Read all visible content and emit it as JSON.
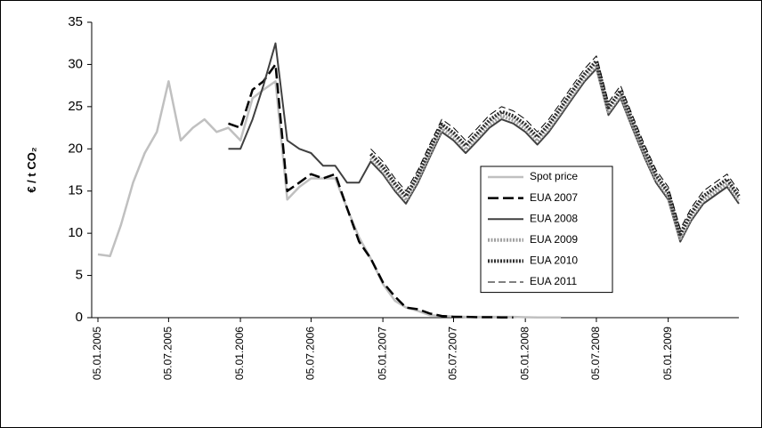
{
  "chart_data": {
    "type": "line",
    "y_label": "€ / t CO₂",
    "x": [
      "05.01.2005",
      "05.02.2005",
      "05.03.2005",
      "05.04.2005",
      "05.05.2005",
      "05.06.2005",
      "05.07.2005",
      "05.08.2005",
      "05.09.2005",
      "05.10.2005",
      "05.11.2005",
      "05.12.2005",
      "05.01.2006",
      "05.02.2006",
      "05.03.2006",
      "05.04.2006",
      "05.05.2006",
      "05.06.2006",
      "05.07.2006",
      "05.08.2006",
      "05.09.2006",
      "05.10.2006",
      "05.11.2006",
      "05.12.2006",
      "05.01.2007",
      "05.02.2007",
      "05.03.2007",
      "05.04.2007",
      "05.05.2007",
      "05.06.2007",
      "05.07.2007",
      "05.08.2007",
      "05.09.2007",
      "05.10.2007",
      "05.11.2007",
      "05.12.2007",
      "05.01.2008",
      "05.02.2008",
      "05.03.2008",
      "05.04.2008",
      "05.05.2008",
      "05.06.2008",
      "05.07.2008",
      "05.08.2008",
      "05.09.2008",
      "05.10.2008",
      "05.11.2008",
      "05.12.2008",
      "05.01.2009",
      "05.02.2009",
      "05.03.2009",
      "05.04.2009",
      "05.05.2009",
      "05.06.2009",
      "05.07.2009"
    ],
    "series": [
      {
        "name": "Spot price",
        "color": "#c0c0c0",
        "style": "solid-light",
        "values": [
          7.5,
          7.3,
          11,
          16,
          19.5,
          22,
          28,
          21,
          22.5,
          23.5,
          22,
          22.5,
          21,
          26,
          27,
          28,
          14,
          15.5,
          16.5,
          16.5,
          16.5,
          13,
          9.5,
          7,
          4,
          2,
          1.2,
          0.8,
          0.3,
          0.2,
          0.15,
          0.1,
          0.1,
          0.1,
          0.1,
          0.1,
          0.05,
          0.03,
          0.02,
          0.02,
          null,
          null,
          null,
          null,
          null,
          null,
          null,
          null,
          null,
          null,
          null,
          null,
          null,
          null,
          null
        ]
      },
      {
        "name": "EUA 2007",
        "color": "#000000",
        "style": "long-dash",
        "values": [
          null,
          null,
          null,
          null,
          null,
          null,
          null,
          null,
          null,
          null,
          null,
          23,
          22.5,
          27,
          28,
          30,
          15,
          16,
          17,
          16.5,
          17,
          13,
          9,
          7,
          4.2,
          2.5,
          1.2,
          1,
          0.5,
          0.2,
          0.1,
          0.1,
          0.05,
          0.05,
          0.03,
          0.02,
          null,
          null,
          null,
          null,
          null,
          null,
          null,
          null,
          null,
          null,
          null,
          null,
          null,
          null,
          null,
          null,
          null,
          null,
          null
        ]
      },
      {
        "name": "EUA 2008",
        "color": "#404040",
        "style": "solid",
        "values": [
          null,
          null,
          null,
          null,
          null,
          null,
          null,
          null,
          null,
          null,
          null,
          20,
          20,
          23.5,
          27.5,
          32.5,
          21,
          20,
          19.5,
          18,
          18,
          16,
          16,
          18.5,
          17,
          15,
          13.5,
          16,
          19,
          22,
          21,
          19.5,
          21,
          22.5,
          23.5,
          23,
          22,
          20.5,
          22,
          24,
          26,
          28,
          29.5,
          24,
          26,
          22.5,
          19,
          16,
          14,
          9,
          11.5,
          13.5,
          14.5,
          15.5,
          13.5
        ]
      },
      {
        "name": "EUA 2009",
        "color": "#a0a0a0",
        "style": "dotted",
        "values": [
          null,
          null,
          null,
          null,
          null,
          null,
          null,
          null,
          null,
          null,
          null,
          null,
          null,
          null,
          null,
          null,
          null,
          null,
          null,
          null,
          null,
          null,
          null,
          18.9,
          17.4,
          15.4,
          13.9,
          16.4,
          19.4,
          22.4,
          21.4,
          19.9,
          21.4,
          22.9,
          23.9,
          23.4,
          22.4,
          20.9,
          22.4,
          24.4,
          26.4,
          28.4,
          29.9,
          24.4,
          26.4,
          22.9,
          19.4,
          16.4,
          14.4,
          9.4,
          11.9,
          13.9,
          14.9,
          15.9,
          13.9
        ]
      },
      {
        "name": "EUA 2010",
        "color": "#303030",
        "style": "dotted",
        "values": [
          null,
          null,
          null,
          null,
          null,
          null,
          null,
          null,
          null,
          null,
          null,
          null,
          null,
          null,
          null,
          null,
          null,
          null,
          null,
          null,
          null,
          null,
          null,
          19.4,
          17.9,
          15.9,
          14.4,
          16.9,
          19.9,
          22.9,
          21.9,
          20.4,
          21.9,
          23.4,
          24.4,
          23.9,
          22.9,
          21.4,
          22.9,
          24.9,
          26.9,
          28.9,
          30.4,
          24.9,
          26.9,
          23.4,
          19.9,
          16.9,
          14.9,
          9.9,
          12.4,
          14.4,
          15.4,
          16.4,
          14.4
        ]
      },
      {
        "name": "EUA 2011",
        "color": "#000000",
        "style": "dash",
        "values": [
          null,
          null,
          null,
          null,
          null,
          null,
          null,
          null,
          null,
          null,
          null,
          null,
          null,
          null,
          null,
          null,
          null,
          null,
          null,
          null,
          null,
          null,
          null,
          20,
          18.5,
          16.5,
          15,
          17.5,
          20.5,
          23.5,
          22.5,
          21,
          22.5,
          24,
          25,
          24.5,
          23.5,
          22,
          23.5,
          25.5,
          27.5,
          29.5,
          31,
          25.5,
          27.5,
          24,
          20.5,
          17.5,
          15.5,
          10.5,
          13,
          15,
          16,
          17,
          15
        ]
      }
    ],
    "xlim": [
      "20.12.2004",
      "05.07.2009"
    ],
    "xticks": [
      "05.01.2005",
      "05.07.2005",
      "05.01.2006",
      "05.07.2006",
      "05.01.2007",
      "05.07.2007",
      "05.01.2008",
      "05.07.2008",
      "05.01.2009"
    ],
    "ylim": [
      0,
      35
    ],
    "yticks": [
      0,
      5,
      10,
      15,
      20,
      25,
      30,
      35
    ],
    "grid": false,
    "legend": "center-right"
  }
}
